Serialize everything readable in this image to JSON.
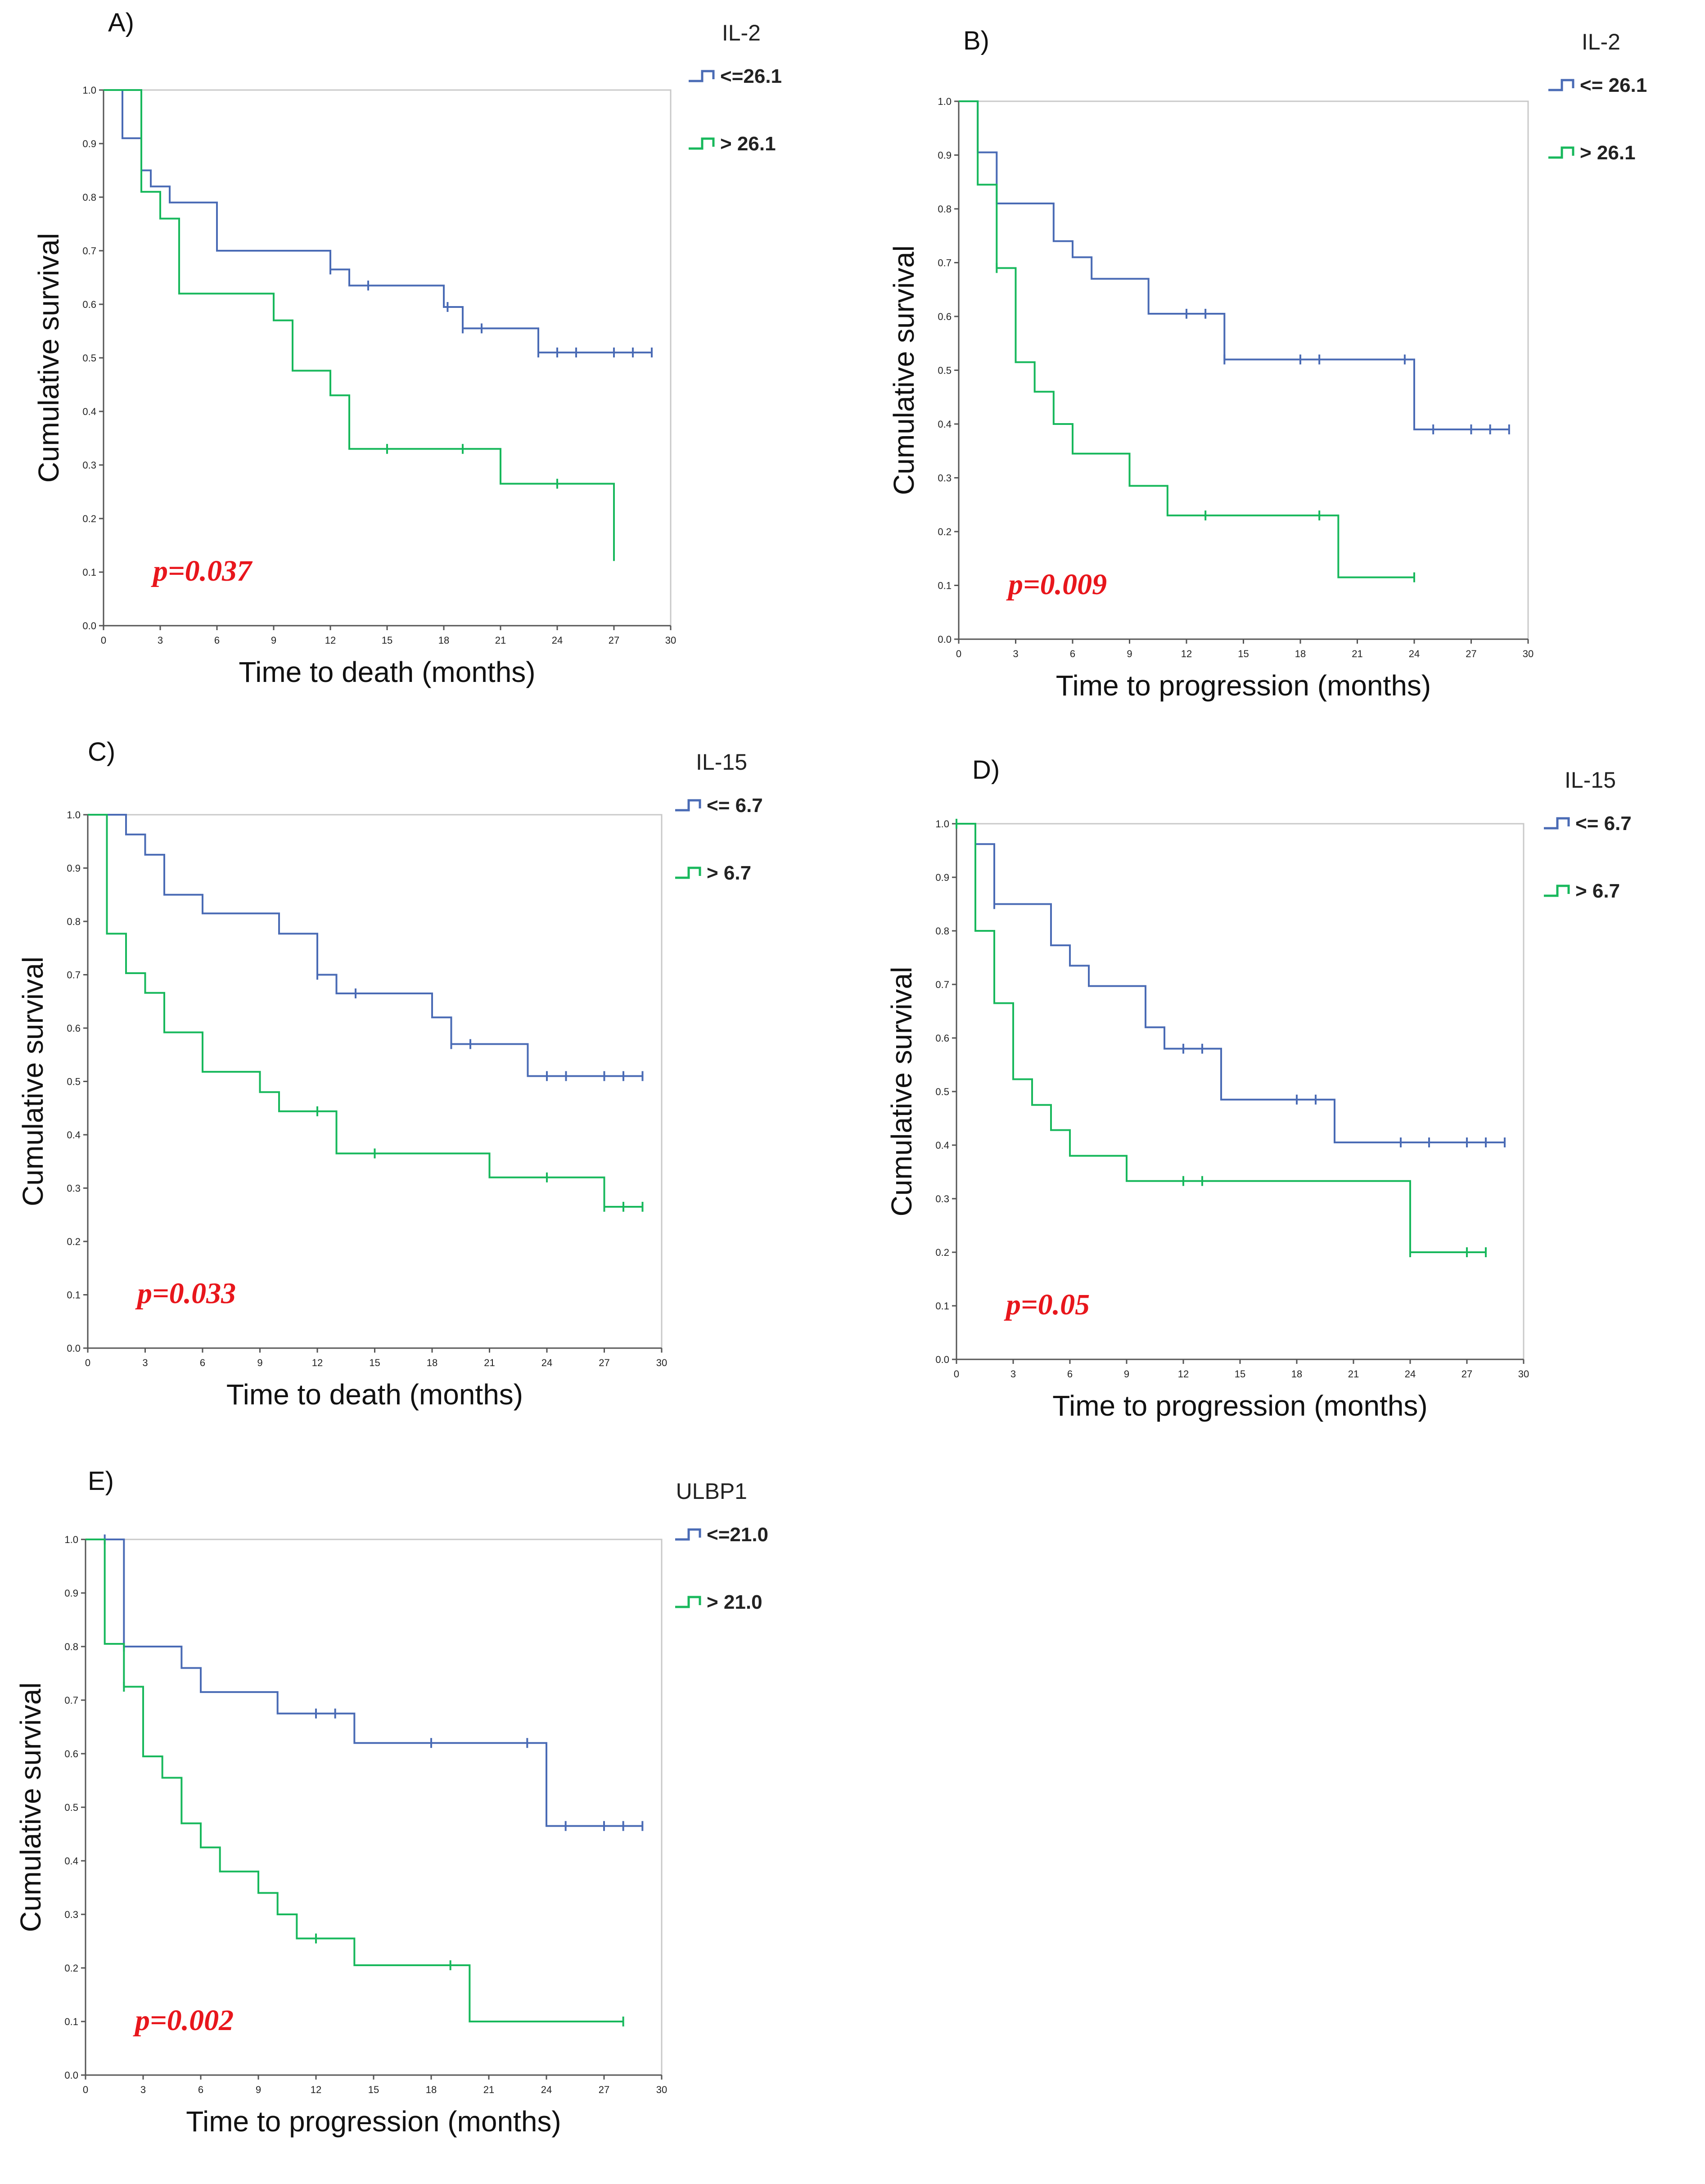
{
  "colors": {
    "low": "#4a6bb5",
    "high": "#18b85c",
    "axis": "#555555",
    "pvalue": "#e8161c"
  },
  "chart_data": [
    {
      "type": "line",
      "subtype": "kaplan-meier",
      "panel": "A)",
      "legend_title": "IL-2",
      "p_value": "p=0.037",
      "xlabel": "Time to death (months)",
      "ylabel": "Cumulative survival",
      "xlim": [
        0,
        30
      ],
      "ylim": [
        0,
        1
      ],
      "xticks": [
        "0",
        "3",
        "6",
        "9",
        "12",
        "15",
        "18",
        "21",
        "24",
        "27",
        "30"
      ],
      "yticks": [
        "0.0",
        "0.1",
        "0.2",
        "0.3",
        "0.4",
        "0.5",
        "0.6",
        "0.7",
        "0.8",
        "0.9",
        "1.0"
      ],
      "series": [
        {
          "name": "<=26.1",
          "group": "low",
          "x": [
            0,
            1,
            2,
            2.5,
            3.5,
            6,
            12,
            13,
            18,
            19,
            23
          ],
          "y": [
            1.0,
            0.91,
            0.85,
            0.82,
            0.79,
            0.7,
            0.665,
            0.635,
            0.595,
            0.555,
            0.51
          ],
          "end": 29,
          "censored_x": [
            12,
            14,
            18.2,
            19,
            20,
            23,
            24,
            25,
            27,
            28,
            29
          ]
        },
        {
          "name": "> 26.1",
          "group": "high",
          "x": [
            0,
            2,
            3,
            4,
            9,
            10,
            12,
            13,
            21,
            27
          ],
          "y": [
            1.0,
            0.81,
            0.76,
            0.62,
            0.57,
            0.476,
            0.43,
            0.33,
            0.265,
            0.13
          ],
          "end": 27,
          "censored_x": [
            15,
            19,
            24,
            27
          ]
        }
      ]
    },
    {
      "type": "line",
      "subtype": "kaplan-meier",
      "panel": "B)",
      "legend_title": "IL-2",
      "p_value": "p=0.009",
      "xlabel": "Time to progression (months)",
      "ylabel": "Cumulative survival",
      "xlim": [
        0,
        30
      ],
      "ylim": [
        0,
        1
      ],
      "xticks": [
        "0",
        "3",
        "6",
        "9",
        "12",
        "15",
        "18",
        "21",
        "24",
        "27",
        "30"
      ],
      "yticks": [
        "0.0",
        "0.1",
        "0.2",
        "0.3",
        "0.4",
        "0.5",
        "0.6",
        "0.7",
        "0.8",
        "0.9",
        "1.0"
      ],
      "series": [
        {
          "name": "<= 26.1",
          "group": "low",
          "x": [
            0,
            1,
            2,
            5,
            6,
            7,
            10,
            14,
            24
          ],
          "y": [
            1.0,
            0.905,
            0.81,
            0.74,
            0.71,
            0.67,
            0.605,
            0.52,
            0.39
          ],
          "end": 29,
          "censored_x": [
            12,
            13,
            14,
            18,
            19,
            23.5,
            25,
            27,
            28,
            29
          ]
        },
        {
          "name": "> 26.1",
          "group": "high",
          "x": [
            0,
            1,
            2,
            3,
            4,
            5,
            6,
            9,
            11,
            20
          ],
          "y": [
            1.0,
            0.845,
            0.69,
            0.515,
            0.46,
            0.4,
            0.345,
            0.285,
            0.23,
            0.115
          ],
          "end": 24,
          "censored_x": [
            2,
            13,
            19,
            24
          ]
        }
      ]
    },
    {
      "type": "line",
      "subtype": "kaplan-meier",
      "panel": "C)",
      "legend_title": "IL-15",
      "p_value": "p=0.033",
      "xlabel": "Time to death (months)",
      "ylabel": "Cumulative survival",
      "xlim": [
        0,
        30
      ],
      "ylim": [
        0,
        1
      ],
      "xticks": [
        "0",
        "3",
        "6",
        "9",
        "12",
        "15",
        "18",
        "21",
        "24",
        "27",
        "30"
      ],
      "yticks": [
        "0.0",
        "0.1",
        "0.2",
        "0.3",
        "0.4",
        "0.5",
        "0.6",
        "0.7",
        "0.8",
        "0.9",
        "1.0"
      ],
      "series": [
        {
          "name": "<= 6.7",
          "group": "low",
          "x": [
            0,
            2,
            3,
            4,
            6,
            10,
            12,
            13,
            18,
            19,
            23
          ],
          "y": [
            1.0,
            0.963,
            0.925,
            0.85,
            0.815,
            0.777,
            0.7,
            0.665,
            0.62,
            0.57,
            0.51
          ],
          "end": 29,
          "censored_x": [
            12,
            14,
            19,
            20,
            24,
            25,
            27,
            28,
            29
          ]
        },
        {
          "name": "> 6.7",
          "group": "high",
          "x": [
            0,
            1,
            2,
            3,
            4,
            6,
            9,
            10,
            13,
            21,
            27
          ],
          "y": [
            1.0,
            0.777,
            0.703,
            0.666,
            0.592,
            0.518,
            0.48,
            0.444,
            0.365,
            0.32,
            0.265
          ],
          "end": 29,
          "censored_x": [
            12,
            15,
            24,
            27,
            28,
            29
          ]
        }
      ]
    },
    {
      "type": "line",
      "subtype": "kaplan-meier",
      "panel": "D)",
      "legend_title": "IL-15",
      "p_value": "p=0.05",
      "xlabel": "Time to progression (months)",
      "ylabel": "Cumulative survival",
      "xlim": [
        0,
        30
      ],
      "ylim": [
        0,
        1
      ],
      "xticks": [
        "0",
        "3",
        "6",
        "9",
        "12",
        "15",
        "18",
        "21",
        "24",
        "27",
        "30"
      ],
      "yticks": [
        "0.0",
        "0.1",
        "0.2",
        "0.3",
        "0.4",
        "0.5",
        "0.6",
        "0.7",
        "0.8",
        "0.9",
        "1.0"
      ],
      "series": [
        {
          "name": "<= 6.7",
          "group": "low",
          "x": [
            0,
            1,
            2,
            5,
            6,
            7,
            10,
            11,
            14,
            20
          ],
          "y": [
            1.0,
            0.962,
            0.85,
            0.773,
            0.735,
            0.697,
            0.62,
            0.58,
            0.485,
            0.405
          ],
          "end": 29,
          "censored_x": [
            2,
            12,
            13,
            18,
            19,
            23.5,
            25,
            27,
            28,
            29
          ]
        },
        {
          "name": "> 6.7",
          "group": "high",
          "x": [
            0,
            1,
            2,
            3,
            4,
            5,
            6,
            9,
            24
          ],
          "y": [
            1.0,
            0.8,
            0.665,
            0.523,
            0.475,
            0.428,
            0.38,
            0.333,
            0.2
          ],
          "end": 28,
          "censored_x": [
            0,
            12,
            13,
            24,
            27,
            28
          ]
        }
      ]
    },
    {
      "type": "line",
      "subtype": "kaplan-meier",
      "panel": "E)",
      "legend_title": "ULBP1",
      "p_value": "p=0.002",
      "xlabel": "Time to progression (months)",
      "ylabel": "Cumulative survival",
      "xlim": [
        0,
        30
      ],
      "ylim": [
        0,
        1
      ],
      "xticks": [
        "0",
        "3",
        "6",
        "9",
        "12",
        "15",
        "18",
        "21",
        "24",
        "27",
        "30"
      ],
      "yticks": [
        "0.0",
        "0.1",
        "0.2",
        "0.3",
        "0.4",
        "0.5",
        "0.6",
        "0.7",
        "0.8",
        "0.9",
        "1.0"
      ],
      "series": [
        {
          "name": "<=21.0",
          "group": "low",
          "x": [
            0,
            2,
            5,
            6,
            10,
            14,
            24
          ],
          "y": [
            1.0,
            0.8,
            0.76,
            0.715,
            0.675,
            0.62,
            0.465
          ],
          "end": 29,
          "censored_x": [
            1,
            2,
            12,
            13,
            18,
            23,
            25,
            27,
            28,
            29
          ]
        },
        {
          "name": "> 21.0",
          "group": "high",
          "x": [
            0,
            1,
            2,
            3,
            4,
            5,
            6,
            7,
            9,
            10,
            11,
            14,
            20
          ],
          "y": [
            1.0,
            0.805,
            0.725,
            0.595,
            0.555,
            0.47,
            0.425,
            0.38,
            0.34,
            0.3,
            0.255,
            0.205,
            0.1
          ],
          "end": 28,
          "censored_x": [
            2,
            12,
            19,
            28
          ]
        }
      ]
    }
  ]
}
